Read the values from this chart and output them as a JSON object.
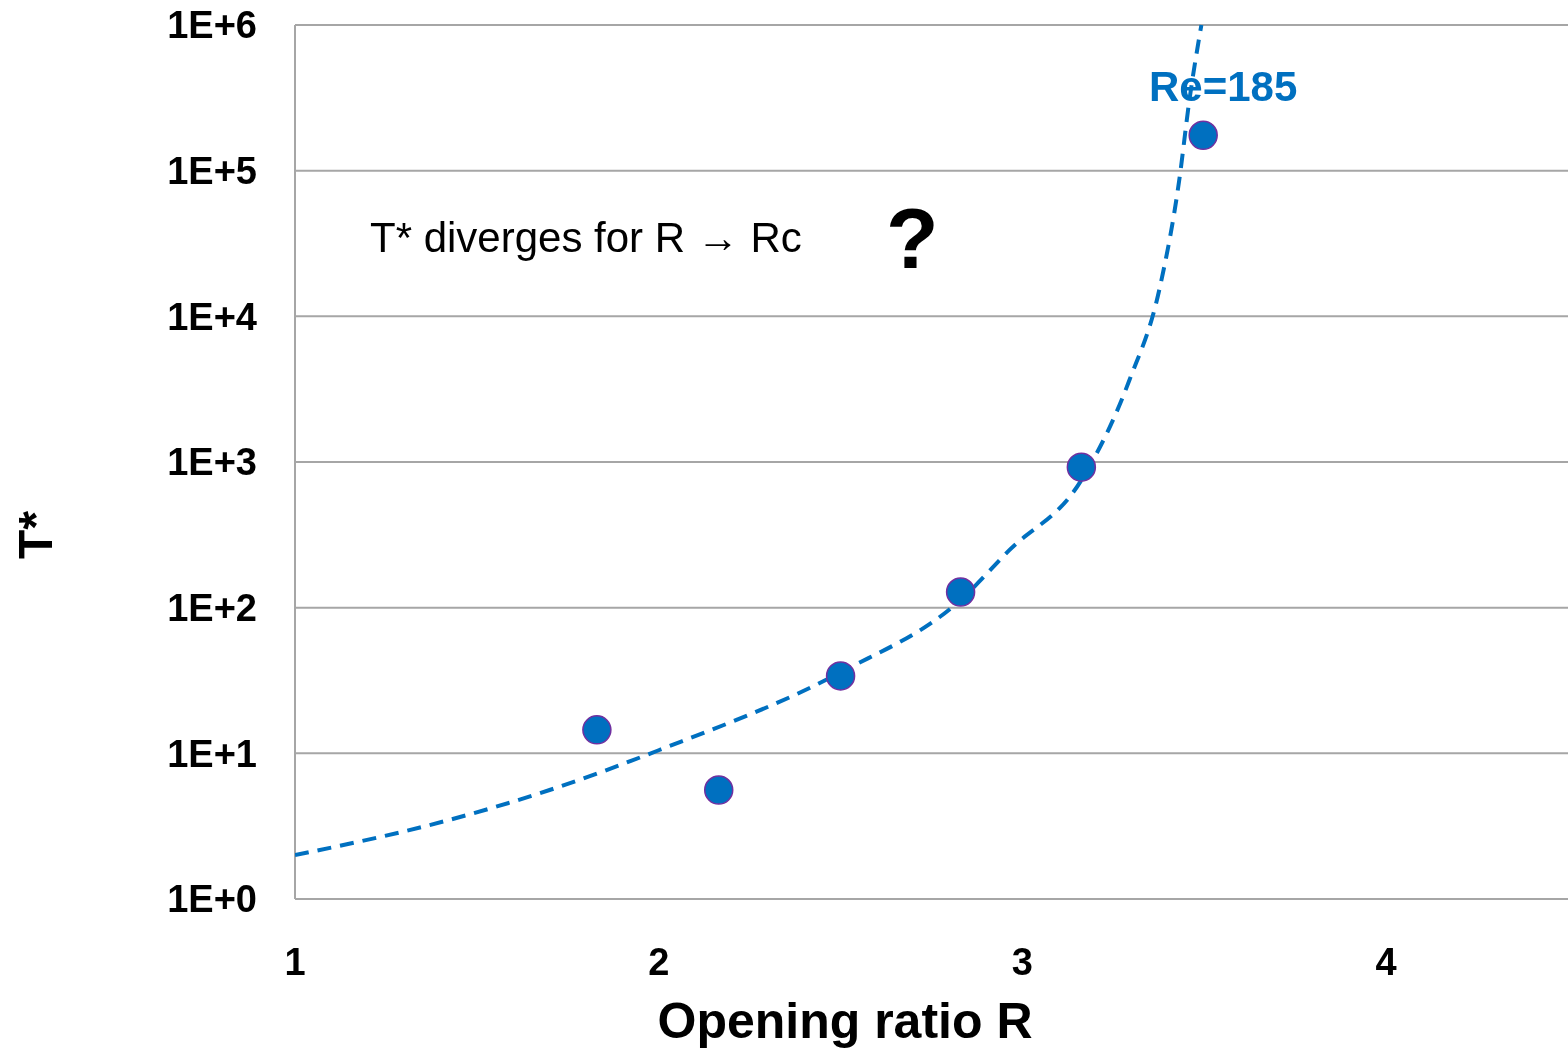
{
  "chart_data": {
    "type": "scatter",
    "xlabel": "Opening ratio R",
    "ylabel": "T*",
    "log": "y",
    "grid": "y",
    "marker": "circle",
    "xlim": [
      1,
      4.5
    ],
    "ylim": [
      1,
      1000000
    ],
    "xticks": [
      1,
      2,
      3,
      4
    ],
    "yticks": [
      {
        "value": 1,
        "label": "1E+0"
      },
      {
        "value": 10,
        "label": "1E+1"
      },
      {
        "value": 100,
        "label": "1E+2"
      },
      {
        "value": 1000,
        "label": "1E+3"
      },
      {
        "value": 10000,
        "label": "1E+4"
      },
      {
        "value": 100000,
        "label": "1E+5"
      },
      {
        "value": 1000000,
        "label": "1E+6"
      }
    ],
    "series": [
      {
        "type": "line",
        "line_style": "dashed",
        "marker": "none",
        "color": "#0070c0",
        "x": [
          1,
          1.426,
          1.7,
          2,
          2.5,
          2.83,
          2.964,
          3.162,
          3.294,
          3.376,
          3.431,
          3.459,
          3.492
        ],
        "values": [
          2.0,
          3.5,
          5.6,
          10.5,
          36,
          113,
          248,
          751,
          3640,
          15100,
          85600,
          304000,
          1000000
        ]
      },
      {
        "name": "Re=185",
        "color": "#0070c0",
        "x": [
          1.83,
          2.165,
          2.5,
          2.83,
          3.162,
          3.497
        ],
        "values": [
          14.5,
          5.6,
          34,
          128,
          922,
          175000
        ]
      }
    ],
    "annotations": [
      "T* diverges for R → Rc",
      "?"
    ]
  }
}
